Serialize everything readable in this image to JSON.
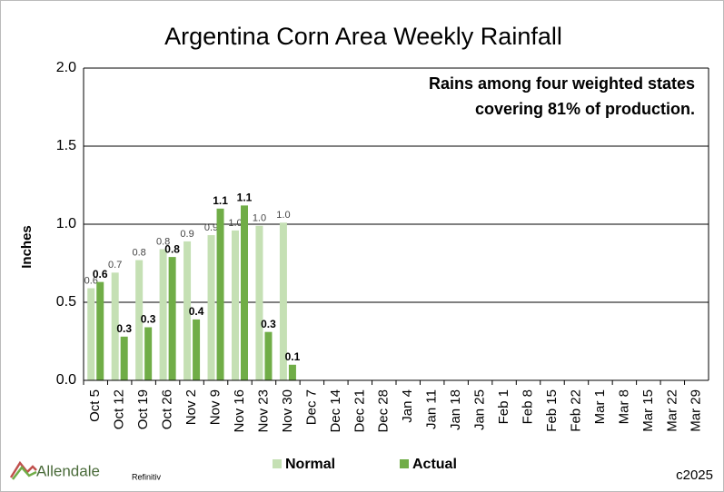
{
  "chart_data": {
    "type": "bar",
    "title": "Argentina Corn Area Weekly Rainfall",
    "annotation": [
      "Rains among four weighted states",
      "covering 81% of production."
    ],
    "y_label": "Inches",
    "categories": [
      "Oct 5",
      "Oct 12",
      "Oct 19",
      "Oct 26",
      "Nov 2",
      "Nov 9",
      "Nov 16",
      "Nov 23",
      "Nov 30",
      "Dec 7",
      "Dec 14",
      "Dec 21",
      "Dec 28",
      "Jan 4",
      "Jan 11",
      "Jan 18",
      "Jan 25",
      "Feb 1",
      "Feb 8",
      "Feb 15",
      "Feb 22",
      "Mar 1",
      "Mar 8",
      "Mar 15",
      "Mar 22",
      "Mar 29"
    ],
    "series": [
      {
        "name": "Normal",
        "color": "#c5e0b4",
        "values": [
          0.59,
          0.69,
          0.77,
          0.84,
          0.89,
          0.93,
          0.96,
          0.99,
          1.01,
          null,
          null,
          null,
          null,
          null,
          null,
          null,
          null,
          null,
          null,
          null,
          null,
          null,
          null,
          null,
          null,
          null
        ],
        "value_labels": [
          "0.6",
          "0.7",
          "0.8",
          "0.8",
          "0.9",
          "0.9",
          "1.0",
          "1.0",
          "1.0",
          null,
          null,
          null,
          null,
          null,
          null,
          null,
          null,
          null,
          null,
          null,
          null,
          null,
          null,
          null,
          null,
          null
        ]
      },
      {
        "name": "Actual",
        "color": "#70ad47",
        "values": [
          0.63,
          0.28,
          0.34,
          0.79,
          0.39,
          1.1,
          1.12,
          0.31,
          0.1,
          null,
          null,
          null,
          null,
          null,
          null,
          null,
          null,
          null,
          null,
          null,
          null,
          null,
          null,
          null,
          null,
          null
        ],
        "value_labels": [
          "0.6",
          "0.3",
          "0.3",
          "0.8",
          "0.4",
          "1.1",
          "1.1",
          "0.3",
          "0.1",
          null,
          null,
          null,
          null,
          null,
          null,
          null,
          null,
          null,
          null,
          null,
          null,
          null,
          null,
          null,
          null,
          null
        ]
      }
    ],
    "ylim": [
      0,
      2
    ],
    "yticks": [
      {
        "value": 0,
        "label": "0.0"
      },
      {
        "value": 0.5,
        "label": "0.5"
      },
      {
        "value": 1,
        "label": "1.0"
      },
      {
        "value": 1.5,
        "label": "1.5"
      },
      {
        "value": 2,
        "label": "2.0"
      }
    ],
    "grid": true,
    "legend": "bottom",
    "logo": "Allendale",
    "source": "Refinitiv",
    "copyright": "c2025"
  }
}
